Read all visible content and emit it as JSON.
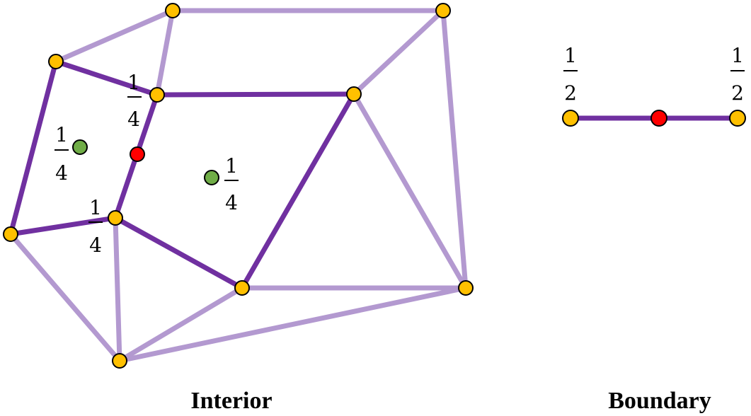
{
  "interior": {
    "caption": "Interior",
    "weight_fractions": [
      {
        "num": "1",
        "den": "4"
      },
      {
        "num": "1",
        "den": "4"
      },
      {
        "num": "1",
        "den": "4"
      },
      {
        "num": "1",
        "den": "4"
      }
    ]
  },
  "boundary": {
    "caption": "Boundary",
    "weight_fractions": [
      {
        "num": "1",
        "den": "2"
      },
      {
        "num": "1",
        "den": "2"
      }
    ]
  },
  "colors": {
    "vertex": "#ffc000",
    "edge_point": "#ff0000",
    "face_point": "#70ad47",
    "edge_highlight": "#7030a0",
    "edge_normal": "#b399d0"
  }
}
